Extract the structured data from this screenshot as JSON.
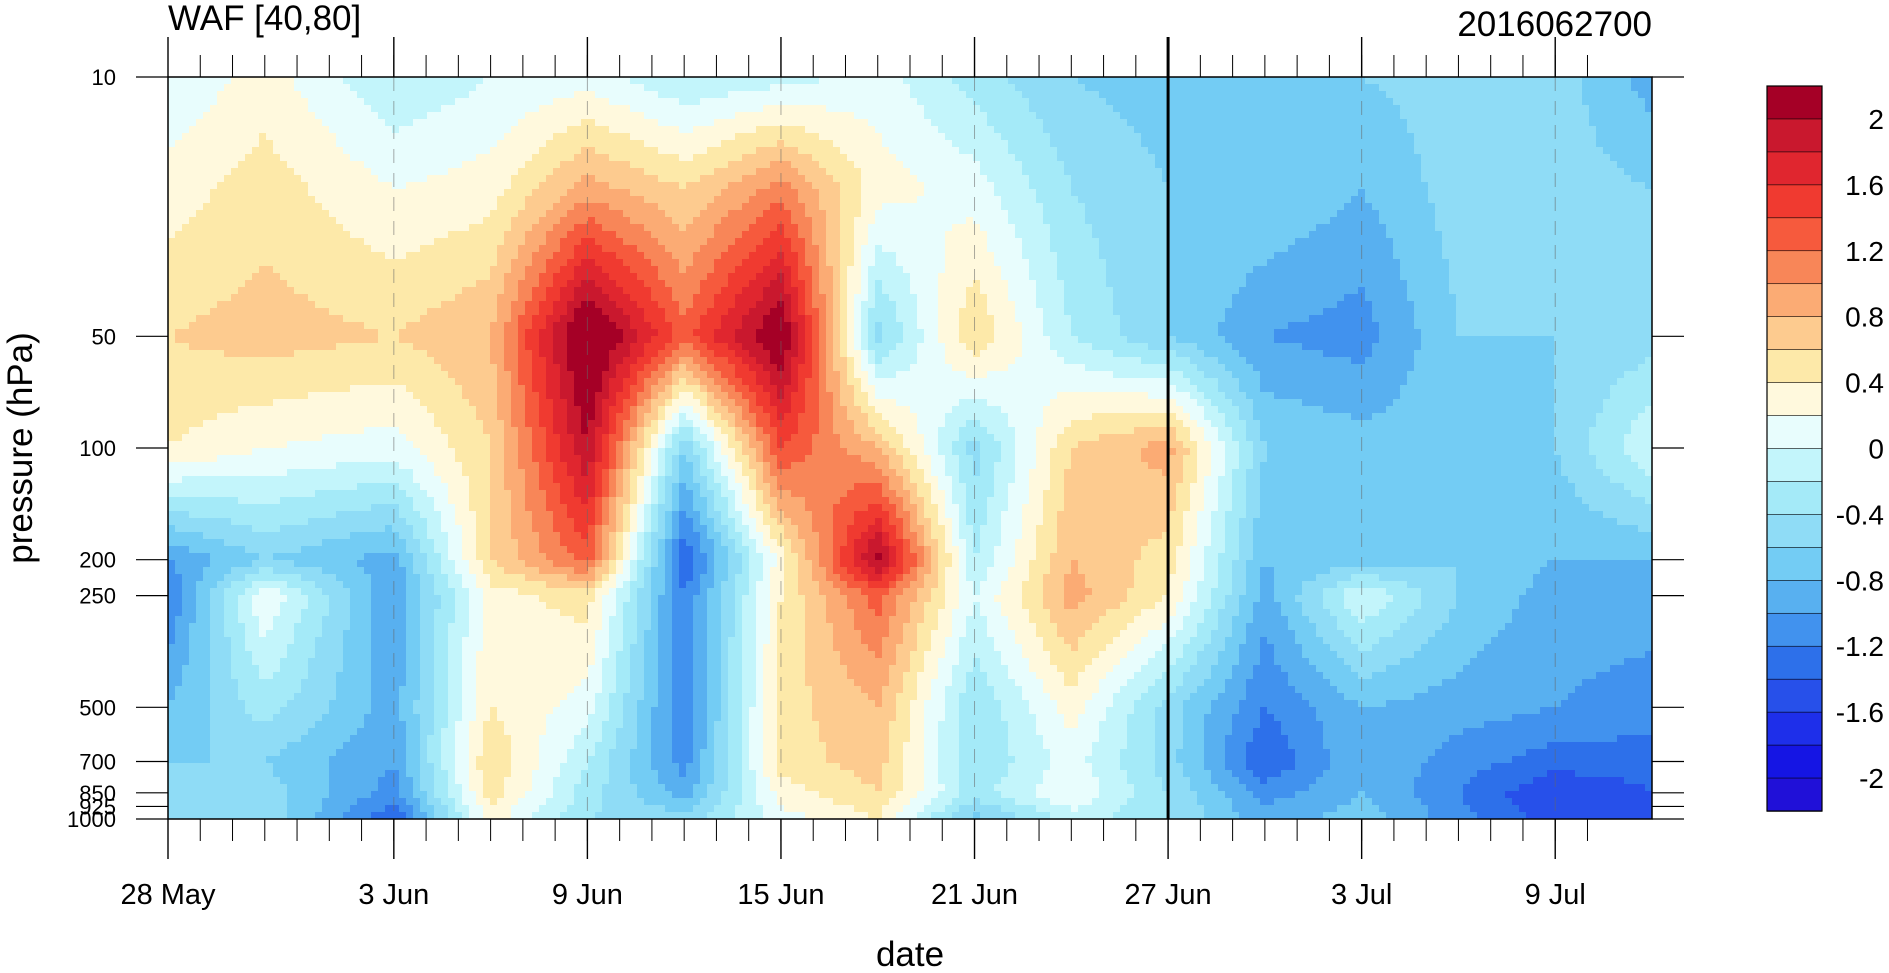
{
  "chart_data": {
    "type": "heatmap",
    "title": "WAF [40,80]",
    "subtitle_right": "2016062700",
    "xlabel": "date",
    "ylabel": "pressure (hPa)",
    "x_ticks": [
      "28 May",
      "3 Jun",
      "9 Jun",
      "15 Jun",
      "21 Jun",
      "27 Jun",
      "3 Jul",
      "9 Jul"
    ],
    "x_range": [
      "28 May",
      "13 Jul"
    ],
    "y_ticks": [
      10,
      50,
      100,
      200,
      250,
      500,
      700,
      850,
      925,
      1000
    ],
    "y_scale": "log",
    "y_range": [
      1000,
      10
    ],
    "reference_line_date": "27 Jun",
    "colorbar": {
      "tick_labels": [
        "2",
        "1.6",
        "1.2",
        "0.8",
        "0.4",
        "0",
        "-0.4",
        "-0.8",
        "-1.2",
        "-1.6",
        "-2"
      ],
      "levels": [
        2.4,
        2.0,
        1.8,
        1.6,
        1.4,
        1.2,
        1.0,
        0.8,
        0.6,
        0.4,
        0.2,
        0.0,
        -0.2,
        -0.4,
        -0.6,
        -0.8,
        -1.0,
        -1.2,
        -1.4,
        -1.6,
        -1.8,
        -2.0,
        -2.4
      ],
      "colors": [
        "#a50026",
        "#c9182e",
        "#e0262f",
        "#f03a30",
        "#f65a3d",
        "#f88658",
        "#fbab74",
        "#fdcb8f",
        "#fde9a9",
        "#fff9dd",
        "#e8fdfd",
        "#c3f5fb",
        "#a4eaf8",
        "#8fdcf6",
        "#73ccf4",
        "#58b0f0",
        "#4192ee",
        "#2d70ea",
        "#2750ea",
        "#1e2fea",
        "#1515e4",
        "#2010d8"
      ]
    },
    "field_nodes": {
      "dates": [
        "28 May",
        "31 May",
        "3 Jun",
        "6 Jun",
        "9 Jun",
        "12 Jun",
        "15 Jun",
        "18 Jun",
        "21 Jun",
        "24 Jun",
        "27 Jun",
        "30 Jun",
        "3 Jul",
        "6 Jul",
        "9 Jul",
        "12 Jul"
      ],
      "pressure_hPa": [
        10,
        20,
        50,
        100,
        200,
        250,
        500,
        700,
        850,
        1000
      ],
      "values": [
        [
          0.0,
          0.3,
          -0.2,
          0.0,
          0.1,
          -0.2,
          -0.1,
          0.1,
          -0.3,
          -0.6,
          -0.7,
          -0.6,
          -0.6,
          -0.5,
          -0.5,
          -0.9
        ],
        [
          0.3,
          0.5,
          0.2,
          0.3,
          0.9,
          0.6,
          1.1,
          0.3,
          0.1,
          -0.4,
          -0.6,
          -0.6,
          -0.8,
          -0.5,
          -0.5,
          -0.6
        ],
        [
          0.6,
          0.7,
          0.6,
          0.8,
          2.4,
          1.3,
          2.3,
          -0.5,
          0.6,
          -0.2,
          -0.6,
          -1.0,
          -1.1,
          -0.6,
          -0.6,
          -0.5
        ],
        [
          0.4,
          0.2,
          0.1,
          0.6,
          2.0,
          -0.6,
          1.4,
          0.8,
          -0.5,
          0.6,
          0.9,
          -0.6,
          -0.7,
          -0.7,
          -0.6,
          0.0
        ],
        [
          -1.0,
          -0.6,
          -0.9,
          0.6,
          1.3,
          -1.4,
          0.3,
          2.1,
          -0.2,
          0.8,
          0.5,
          -0.8,
          -0.7,
          -0.6,
          -0.8,
          -0.8
        ],
        [
          -1.2,
          0.2,
          -1.0,
          0.3,
          0.5,
          -1.2,
          0.4,
          1.3,
          0.0,
          0.9,
          0.4,
          -0.9,
          0.0,
          -0.6,
          -0.9,
          -0.9
        ],
        [
          -0.8,
          -0.3,
          -0.9,
          0.4,
          0.1,
          -1.2,
          0.5,
          0.8,
          -0.4,
          0.3,
          -0.5,
          -1.2,
          -0.8,
          -0.9,
          -1.0,
          -1.1
        ],
        [
          -0.6,
          -0.6,
          -1.0,
          0.6,
          -0.2,
          -1.1,
          0.5,
          0.7,
          -0.4,
          0.1,
          -0.5,
          -1.4,
          -0.8,
          -1.1,
          -1.3,
          -1.3
        ],
        [
          -0.4,
          -0.5,
          -1.1,
          0.5,
          -0.3,
          -0.9,
          0.3,
          0.6,
          -0.3,
          0.2,
          -0.4,
          -1.1,
          -0.8,
          -1.2,
          -1.6,
          -1.4
        ],
        [
          -0.5,
          -0.4,
          -1.4,
          0.3,
          -0.4,
          -0.5,
          0.1,
          0.4,
          -0.7,
          -0.1,
          -0.4,
          -0.9,
          -0.7,
          -1.1,
          -1.5,
          -1.5
        ]
      ]
    }
  }
}
